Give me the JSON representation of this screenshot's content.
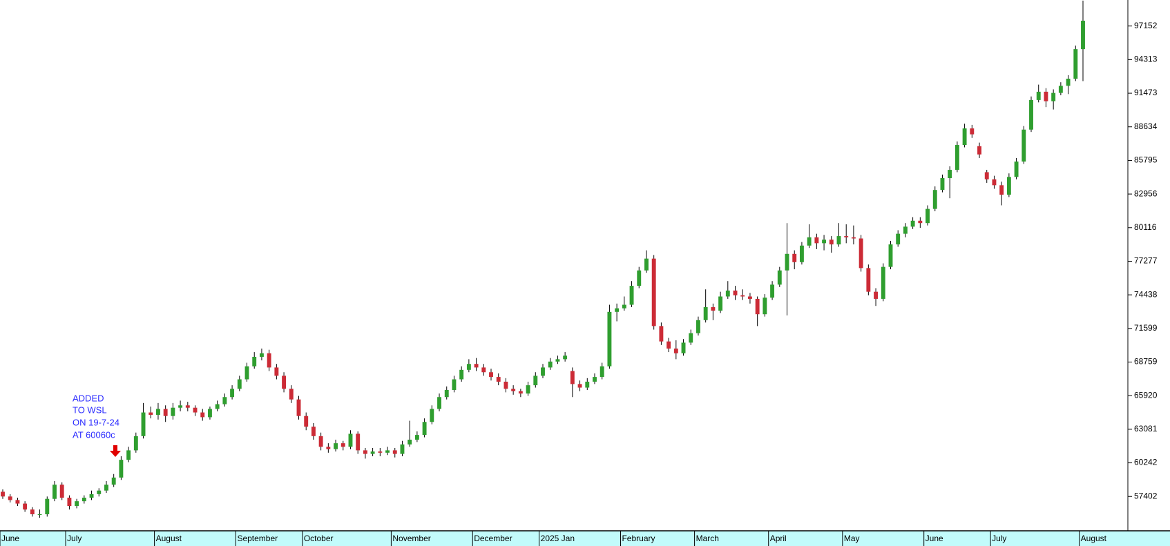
{
  "chart_data": {
    "type": "candlestick",
    "annotation": [
      "ADDED",
      "TO WSL",
      "ON 19-7-24",
      "AT 60060c"
    ],
    "categories": [
      "June",
      null,
      null,
      null,
      null,
      null,
      null,
      null,
      null,
      "July",
      null,
      null,
      null,
      null,
      null,
      null,
      null,
      null,
      null,
      null,
      null,
      "August",
      null,
      null,
      null,
      null,
      null,
      null,
      null,
      null,
      null,
      null,
      "September",
      null,
      null,
      null,
      null,
      null,
      null,
      null,
      null,
      "October",
      null,
      null,
      null,
      null,
      null,
      null,
      null,
      null,
      null,
      null,
      null,
      "November",
      null,
      null,
      null,
      null,
      null,
      null,
      null,
      null,
      null,
      null,
      "December",
      null,
      null,
      null,
      null,
      null,
      null,
      null,
      null,
      "2025 Jan",
      null,
      null,
      null,
      null,
      null,
      null,
      null,
      null,
      null,
      null,
      "February",
      null,
      null,
      null,
      null,
      null,
      null,
      null,
      null,
      null,
      "March",
      null,
      null,
      null,
      null,
      null,
      null,
      null,
      null,
      null,
      "April",
      null,
      null,
      null,
      null,
      null,
      null,
      null,
      null,
      null,
      "May",
      null,
      null,
      null,
      null,
      null,
      null,
      null,
      null,
      null,
      null,
      "June",
      null,
      null,
      null,
      null,
      null,
      null,
      null,
      null,
      "July",
      null,
      null,
      null,
      null,
      null,
      null,
      null,
      null,
      null,
      null,
      null,
      "August"
    ],
    "open": [
      57800,
      57400,
      57100,
      56800,
      56300,
      55900,
      55900,
      57200,
      58400,
      57300,
      56600,
      57000,
      57300,
      57600,
      57900,
      58400,
      59000,
      60500,
      61300,
      62500,
      64500,
      64300,
      64800,
      64200,
      64900,
      65100,
      64900,
      64500,
      64100,
      64800,
      65200,
      65800,
      66500,
      67300,
      68400,
      69200,
      69500,
      68300,
      67600,
      66500,
      65600,
      64200,
      63300,
      62500,
      61600,
      61400,
      61900,
      61600,
      62700,
      61300,
      61000,
      61200,
      61100,
      61300,
      61000,
      61800,
      62200,
      62600,
      63700,
      64800,
      65800,
      66400,
      67300,
      68100,
      68600,
      68300,
      67900,
      67500,
      67100,
      66500,
      66300,
      66100,
      66800,
      67600,
      68300,
      68800,
      69000,
      68000,
      66900,
      66600,
      67100,
      67500,
      68400,
      73000,
      73300,
      73600,
      75200,
      76500,
      77500,
      71800,
      70500,
      69900,
      69500,
      70400,
      71200,
      72300,
      73400,
      73100,
      74300,
      74800,
      74400,
      74300,
      74100,
      72800,
      74200,
      75300,
      76500,
      77900,
      77200,
      78600,
      79300,
      78800,
      79100,
      78700,
      79400,
      79300,
      79200,
      76700,
      74700,
      74100,
      76800,
      78700,
      79600,
      80200,
      80700,
      80500,
      81700,
      83300,
      84300,
      85000,
      87100,
      88500,
      87000,
      84800,
      84200,
      83700,
      82900,
      84400,
      85700,
      88400,
      90900,
      91600,
      90800,
      91500,
      92100,
      92700,
      95200
    ],
    "high": [
      58000,
      57600,
      57300,
      57000,
      56500,
      56300,
      57400,
      58700,
      58600,
      57500,
      57200,
      57500,
      57900,
      58100,
      58700,
      59300,
      60800,
      61600,
      62800,
      65300,
      65000,
      65300,
      65100,
      65300,
      65500,
      65400,
      65100,
      64800,
      65000,
      65500,
      66100,
      66800,
      67600,
      68700,
      69600,
      69900,
      69800,
      68600,
      67900,
      66800,
      65900,
      64500,
      63600,
      62800,
      61900,
      62200,
      62100,
      63000,
      62900,
      61500,
      61500,
      61500,
      61600,
      61500,
      62100,
      63800,
      62900,
      64000,
      65100,
      66100,
      66700,
      67600,
      68400,
      69000,
      69100,
      68600,
      68200,
      67800,
      67400,
      66800,
      66500,
      67100,
      67900,
      68600,
      69100,
      69300,
      69600,
      68300,
      67200,
      67400,
      67800,
      68700,
      73600,
      73700,
      74300,
      75600,
      76800,
      78200,
      77800,
      72100,
      70800,
      70600,
      70700,
      71500,
      72600,
      74900,
      73700,
      74700,
      75600,
      75200,
      74900,
      74600,
      74300,
      74500,
      75600,
      76800,
      80500,
      78200,
      78900,
      80400,
      79600,
      79500,
      79400,
      80500,
      80400,
      80300,
      79500,
      77000,
      75000,
      77100,
      79000,
      79900,
      80500,
      81000,
      81000,
      82000,
      83600,
      84600,
      85300,
      87400,
      88900,
      88800,
      87300,
      85000,
      84500,
      84000,
      84700,
      86000,
      88700,
      91200,
      92200,
      91900,
      91800,
      92400,
      93000,
      95500,
      99300
    ],
    "low": [
      57200,
      56900,
      56600,
      56100,
      55700,
      55600,
      55700,
      57000,
      57100,
      56300,
      56400,
      56800,
      57100,
      57400,
      57700,
      58200,
      58800,
      60300,
      61100,
      62300,
      64000,
      63900,
      63700,
      63900,
      64600,
      64600,
      64200,
      63800,
      63900,
      64600,
      65000,
      65600,
      66300,
      67100,
      68200,
      68900,
      68000,
      67300,
      66200,
      65300,
      63900,
      63000,
      62200,
      61300,
      61100,
      61200,
      61300,
      61400,
      61000,
      60600,
      60800,
      60800,
      60900,
      60700,
      60800,
      61600,
      62000,
      62400,
      63500,
      64600,
      65600,
      66200,
      67100,
      67900,
      68000,
      67600,
      67200,
      66800,
      66200,
      66000,
      65800,
      65900,
      66600,
      67400,
      68100,
      68600,
      68800,
      65800,
      66300,
      66400,
      66900,
      67300,
      68200,
      72200,
      73100,
      73400,
      75000,
      76300,
      71500,
      70200,
      69600,
      69000,
      69300,
      70200,
      71000,
      72100,
      72300,
      72900,
      74100,
      74000,
      74000,
      73700,
      71800,
      72600,
      74000,
      75100,
      72700,
      76600,
      77000,
      78400,
      78300,
      78200,
      78000,
      78500,
      78800,
      78700,
      76400,
      74400,
      73500,
      73900,
      76600,
      78500,
      79300,
      80000,
      80100,
      80300,
      81500,
      83100,
      82600,
      84800,
      86900,
      87700,
      86000,
      83900,
      83400,
      82000,
      82700,
      84200,
      85500,
      88200,
      90700,
      90300,
      90100,
      91300,
      91400,
      92500,
      92500
    ],
    "close": [
      57400,
      57100,
      56800,
      56300,
      55900,
      55900,
      57200,
      58400,
      57300,
      56600,
      57000,
      57300,
      57600,
      57900,
      58400,
      59000,
      60500,
      61300,
      62500,
      64500,
      64300,
      64800,
      64200,
      64900,
      65100,
      64900,
      64500,
      64100,
      64800,
      65200,
      65800,
      66500,
      67300,
      68400,
      69200,
      69500,
      68300,
      67600,
      66500,
      65600,
      64200,
      63300,
      62500,
      61600,
      61400,
      61900,
      61600,
      62700,
      61300,
      61000,
      61200,
      61100,
      61300,
      61000,
      61800,
      62200,
      62600,
      63700,
      64800,
      65800,
      66400,
      67300,
      68100,
      68600,
      68300,
      67900,
      67500,
      67100,
      66500,
      66300,
      66100,
      66800,
      67600,
      68300,
      68800,
      69000,
      69300,
      66900,
      66600,
      67100,
      67500,
      68400,
      73000,
      73300,
      73600,
      75200,
      76500,
      77500,
      71800,
      70500,
      69900,
      69500,
      70400,
      71200,
      72300,
      73400,
      73100,
      74300,
      74800,
      74400,
      74300,
      74100,
      72800,
      74200,
      75300,
      76500,
      77900,
      77200,
      78600,
      79300,
      78800,
      79100,
      78700,
      79400,
      79300,
      79200,
      76700,
      74700,
      74100,
      76800,
      78700,
      79600,
      80200,
      80700,
      80500,
      81700,
      83300,
      84300,
      85000,
      87100,
      88500,
      88000,
      86300,
      84200,
      83700,
      82900,
      84400,
      85700,
      88400,
      90900,
      91600,
      90800,
      91500,
      92100,
      92700,
      95200,
      97600
    ],
    "up_color": "#2f9e2f",
    "down_color": "#cc2b36",
    "ylim": [
      54500,
      99350
    ],
    "yticks": [
      57402,
      60242,
      63081,
      65920,
      68759,
      71599,
      74438,
      77277,
      80116,
      82956,
      85795,
      88634,
      91473,
      94313,
      97152
    ],
    "yaxis_side": "right"
  }
}
